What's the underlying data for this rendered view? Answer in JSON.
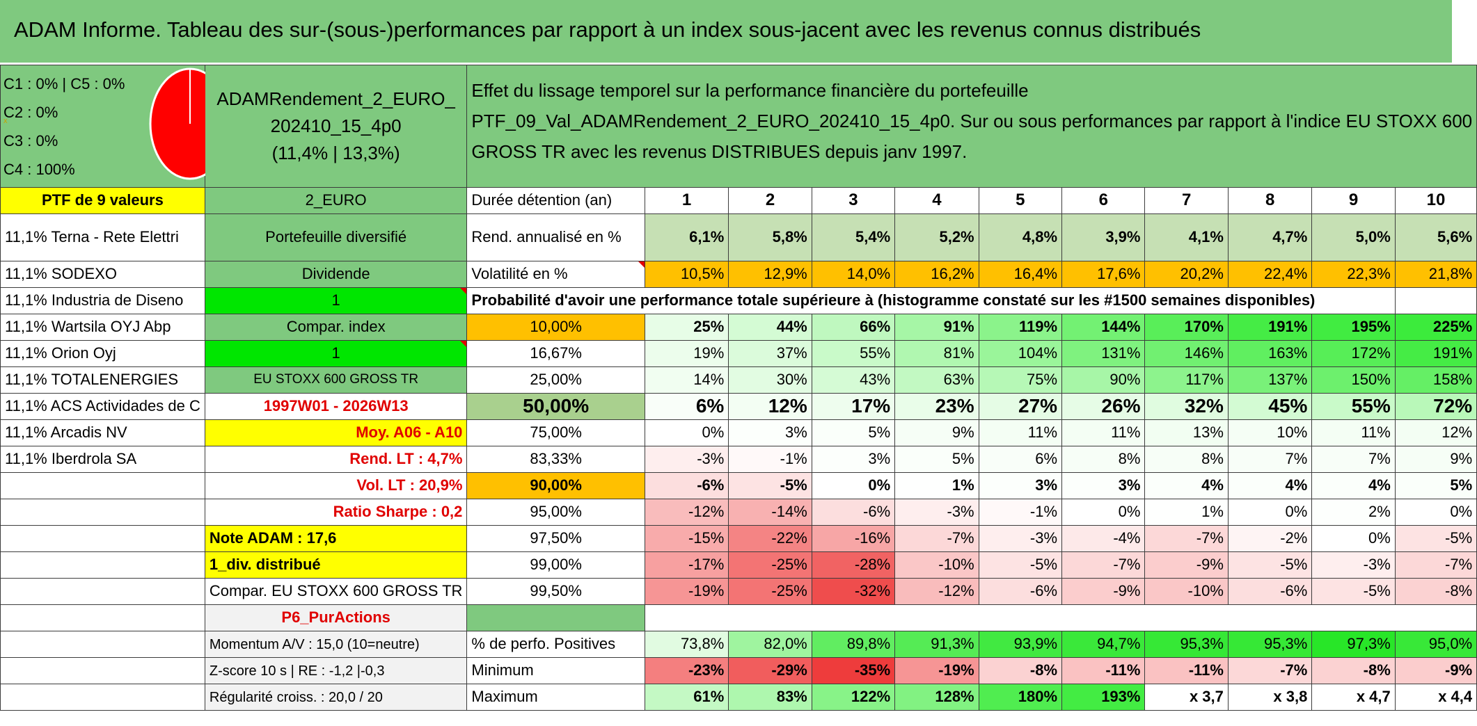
{
  "title": "ADAM Informe. Tableau des sur-(sous-)performances par rapport à un index sous-jacent avec les revenus connus distribués",
  "colors": {
    "header_green": "#7fc97f",
    "yellow": "#ffff00",
    "bright_green": "#00e600",
    "orange": "#ffc000",
    "pie_red": "#ff0000"
  },
  "allocation": {
    "c1c5": "C1 : 0% | C5 : 0%",
    "c2": "C2 : 0%",
    "c3": "C3 : 0%",
    "c4": "C4 : 100%"
  },
  "pie_chart_data": {
    "type": "pie",
    "slices": [
      {
        "name": "C4",
        "value": 100
      }
    ]
  },
  "portfolio": {
    "name_line1": "ADAMRendement_2_EURO_",
    "name_line2": "202410_15_4p0",
    "name_line3": "(11,4% | 13,3%)"
  },
  "effect": {
    "line1": "Effet du lissage temporel sur la performance financière du portefeuille",
    "line2": "PTF_09_Val_ADAMRendement_2_EURO_202410_15_4p0. Sur ou sous performances par rapport à l'indice EU STOXX 600",
    "line3": "GROSS TR avec les revenus DISTRIBUES depuis janv 1997."
  },
  "left_col": {
    "header": "PTF de 9 valeurs",
    "holdings": [
      "11,1% Terna - Rete Elettri",
      "11,1% SODEXO",
      "11,1% Industria de Diseno",
      "11,1% Wartsila OYJ Abp",
      "11,1% Orion Oyj",
      "11,1% TOTALENERGIES",
      "11,1% ACS Actividades de C",
      "11,1% Arcadis NV",
      "11,1% Iberdrola SA"
    ]
  },
  "mid_col": {
    "currency": "2_EURO",
    "diversified": "Portefeuille diversifié",
    "dividend": "Dividende",
    "one_a": "1",
    "compar_index": "Compar. index",
    "one_b": "1",
    "index_name": "EU STOXX 600 GROSS TR",
    "period": "1997W01 - 2026W13",
    "moy": "Moy. A06 - A10",
    "rend_lt": "Rend. LT : 4,7%",
    "vol_lt": "Vol. LT : 20,9%",
    "sharpe": "Ratio Sharpe : 0,2",
    "note": "Note ADAM : 17,6",
    "div": "1_div. distribué",
    "compar_full": "Compar. EU STOXX 600 GROSS TR",
    "p6": "P6_PurActions",
    "momentum": "Momentum A/V : 15,0 (10=neutre)",
    "zscore": "Z-score 10 s | RE : -1,2 |-0,3",
    "regularite": "Régularité croiss. : 20,0 / 20"
  },
  "table": {
    "duration_label": "Durée détention (an)",
    "years": [
      "1",
      "2",
      "3",
      "4",
      "5",
      "6",
      "7",
      "8",
      "9",
      "10"
    ],
    "rend_label": "Rend. annualisé en %",
    "rend": [
      "6,1%",
      "5,8%",
      "5,4%",
      "5,2%",
      "4,8%",
      "3,9%",
      "4,1%",
      "4,7%",
      "5,0%",
      "5,6%"
    ],
    "vol_label": "Volatilité en %",
    "vol": [
      "10,5%",
      "12,9%",
      "14,0%",
      "16,2%",
      "16,4%",
      "17,6%",
      "20,2%",
      "22,4%",
      "22,3%",
      "21,8%"
    ],
    "prob_label": "Probabilité d'avoir une performance totale supérieure à (histogramme constaté sur les #1500 semaines disponibles)",
    "quantiles": [
      {
        "label": "10,00%",
        "vals": [
          "25%",
          "44%",
          "66%",
          "91%",
          "119%",
          "144%",
          "170%",
          "191%",
          "195%",
          "225%"
        ]
      },
      {
        "label": "16,67%",
        "vals": [
          "19%",
          "37%",
          "55%",
          "81%",
          "104%",
          "131%",
          "146%",
          "163%",
          "172%",
          "191%"
        ]
      },
      {
        "label": "25,00%",
        "vals": [
          "14%",
          "30%",
          "43%",
          "63%",
          "75%",
          "90%",
          "117%",
          "137%",
          "150%",
          "158%"
        ]
      },
      {
        "label": "50,00%",
        "vals": [
          "6%",
          "12%",
          "17%",
          "23%",
          "27%",
          "26%",
          "32%",
          "45%",
          "55%",
          "72%"
        ]
      },
      {
        "label": "75,00%",
        "vals": [
          "0%",
          "3%",
          "5%",
          "9%",
          "11%",
          "11%",
          "13%",
          "10%",
          "11%",
          "12%"
        ]
      },
      {
        "label": "83,33%",
        "vals": [
          "-3%",
          "-1%",
          "3%",
          "5%",
          "6%",
          "8%",
          "8%",
          "7%",
          "7%",
          "9%"
        ]
      },
      {
        "label": "90,00%",
        "vals": [
          "-6%",
          "-5%",
          "0%",
          "1%",
          "3%",
          "3%",
          "4%",
          "4%",
          "4%",
          "5%"
        ]
      },
      {
        "label": "95,00%",
        "vals": [
          "-12%",
          "-14%",
          "-6%",
          "-3%",
          "-1%",
          "0%",
          "1%",
          "0%",
          "2%",
          "0%"
        ]
      },
      {
        "label": "97,50%",
        "vals": [
          "-15%",
          "-22%",
          "-16%",
          "-7%",
          "-3%",
          "-4%",
          "-7%",
          "-2%",
          "0%",
          "-5%"
        ]
      },
      {
        "label": "99,00%",
        "vals": [
          "-17%",
          "-25%",
          "-28%",
          "-10%",
          "-5%",
          "-7%",
          "-9%",
          "-5%",
          "-3%",
          "-7%"
        ]
      },
      {
        "label": "99,50%",
        "vals": [
          "-19%",
          "-25%",
          "-32%",
          "-12%",
          "-6%",
          "-9%",
          "-10%",
          "-6%",
          "-5%",
          "-8%"
        ]
      }
    ],
    "pos_label": "% de perfo. Positives",
    "pos": [
      "73,8%",
      "82,0%",
      "89,8%",
      "91,3%",
      "93,9%",
      "94,7%",
      "95,3%",
      "95,3%",
      "97,3%",
      "95,0%"
    ],
    "min_label": "Minimum",
    "min": [
      "-23%",
      "-29%",
      "-35%",
      "-19%",
      "-8%",
      "-11%",
      "-11%",
      "-7%",
      "-8%",
      "-9%"
    ],
    "max_label": "Maximum",
    "max": [
      "61%",
      "83%",
      "122%",
      "128%",
      "180%",
      "193%",
      "x 3,7",
      "x 3,8",
      "x 4,7",
      "x 4,4"
    ]
  }
}
